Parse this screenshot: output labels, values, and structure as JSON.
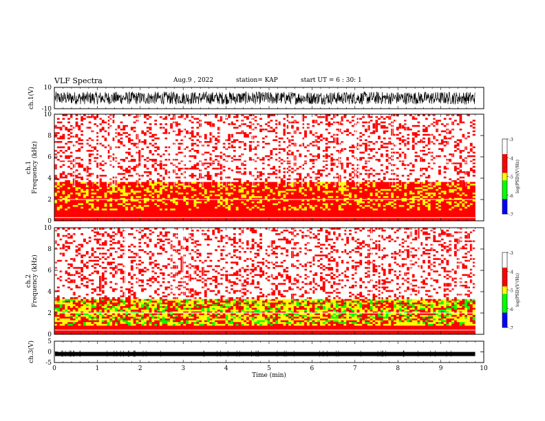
{
  "header": {
    "title": "VLF Spectra",
    "date": "Aug.9 , 2022",
    "station": "station= KAP",
    "start": "start UT = 6 : 30: 1"
  },
  "chart_data": [
    {
      "type": "line",
      "panel": "ch1-waveform",
      "ylabel": "ch.1(V)",
      "ylim": [
        -10,
        10
      ],
      "yticks": [
        "10",
        "-10"
      ],
      "x_range_min": [
        0,
        9.8
      ],
      "appearance": "dense black noise trace filling the band between ≈ -6 V and ≈ +6 V"
    },
    {
      "type": "heatmap",
      "panel": "ch1-spectrogram",
      "ylabel": "ch.1\nFrequency (kHz)",
      "ylim": [
        0,
        10
      ],
      "yticks": [
        "0",
        "2",
        "4",
        "6",
        "8",
        "10"
      ],
      "x_range_min": [
        0,
        9.8
      ],
      "colorbar": {
        "label": "log(PSD)(V²/Hz)",
        "range": [
          -7,
          -3
        ],
        "ticks": [
          "-3",
          "-4",
          "-5",
          "-6",
          "-7"
        ]
      },
      "bands": [
        {
          "freq_khz": [
            0,
            1.0
          ],
          "level": -4.3
        },
        {
          "freq_khz": [
            1.0,
            3.6
          ],
          "level": -4.6
        },
        {
          "freq_khz": [
            3.6,
            10.0
          ],
          "level": -3.6
        }
      ],
      "lines_khz": [
        5.5,
        2.0,
        0.3
      ]
    },
    {
      "type": "heatmap",
      "panel": "ch2-spectrogram",
      "ylabel": "ch.2\nFrequency (kHz)",
      "ylim": [
        0,
        10
      ],
      "yticks": [
        "0",
        "2",
        "4",
        "6",
        "8",
        "10"
      ],
      "x_range_min": [
        0,
        9.8
      ],
      "colorbar": {
        "label": "log(PSD)(V²/Hz)",
        "range": [
          -7,
          -3
        ],
        "ticks": [
          "-3",
          "-4",
          "-5",
          "-6",
          "-7"
        ]
      },
      "bands": [
        {
          "freq_khz": [
            0,
            0.8
          ],
          "level": -4.3
        },
        {
          "freq_khz": [
            0.8,
            3.3
          ],
          "level": -4.9
        },
        {
          "freq_khz": [
            3.3,
            10.0
          ],
          "level": -3.6
        }
      ],
      "lines_khz": [
        2.0,
        0.4
      ]
    },
    {
      "type": "line",
      "panel": "ch3-waveform",
      "ylabel": "ch.3(V)",
      "ylim": [
        -5,
        5
      ],
      "yticks": [
        "5",
        "0",
        "-5"
      ],
      "x_range_min": [
        0,
        9.8
      ],
      "appearance": "thick nearly-flat black trace at ≈ -1 V"
    }
  ],
  "xaxis": {
    "label": "Time (min)",
    "ticks": [
      "0",
      "1",
      "2",
      "3",
      "4",
      "5",
      "6",
      "7",
      "8",
      "9",
      "10"
    ],
    "xlim": [
      0,
      10
    ]
  },
  "colors": {
    "high": "#ff0000",
    "mid": "#ffff00",
    "low": "#00cc00",
    "min": "#0000ff"
  }
}
